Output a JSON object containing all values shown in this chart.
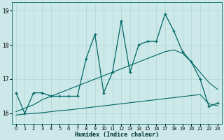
{
  "title": "",
  "xlabel": "Humidex (Indice chaleur)",
  "xlim": [
    -0.5,
    23.5
  ],
  "ylim": [
    15.7,
    19.25
  ],
  "yticks": [
    16,
    17,
    18,
    19
  ],
  "xticks": [
    0,
    1,
    2,
    3,
    4,
    5,
    6,
    7,
    8,
    9,
    10,
    11,
    12,
    13,
    14,
    15,
    16,
    17,
    18,
    19,
    20,
    21,
    22,
    23
  ],
  "bg_color": "#cce8e8",
  "line_color": "#006666",
  "grid_color": "#aacfcf",
  "main_series": [
    16.6,
    16.0,
    16.6,
    16.6,
    16.5,
    16.5,
    16.5,
    16.5,
    17.6,
    18.3,
    16.6,
    17.2,
    18.7,
    17.2,
    18.0,
    18.1,
    18.1,
    18.9,
    18.4,
    17.8,
    17.5,
    17.0,
    16.2,
    16.3
  ],
  "smooth_upper": [
    16.05,
    16.15,
    16.25,
    16.4,
    16.5,
    16.6,
    16.7,
    16.8,
    16.9,
    17.0,
    17.1,
    17.2,
    17.3,
    17.4,
    17.5,
    17.6,
    17.7,
    17.8,
    17.85,
    17.75,
    17.5,
    17.2,
    16.9,
    16.7
  ],
  "smooth_lower": [
    15.95,
    15.98,
    16.0,
    16.02,
    16.05,
    16.08,
    16.1,
    16.13,
    16.16,
    16.19,
    16.22,
    16.25,
    16.28,
    16.31,
    16.34,
    16.37,
    16.4,
    16.43,
    16.46,
    16.49,
    16.52,
    16.55,
    16.28,
    16.22
  ]
}
